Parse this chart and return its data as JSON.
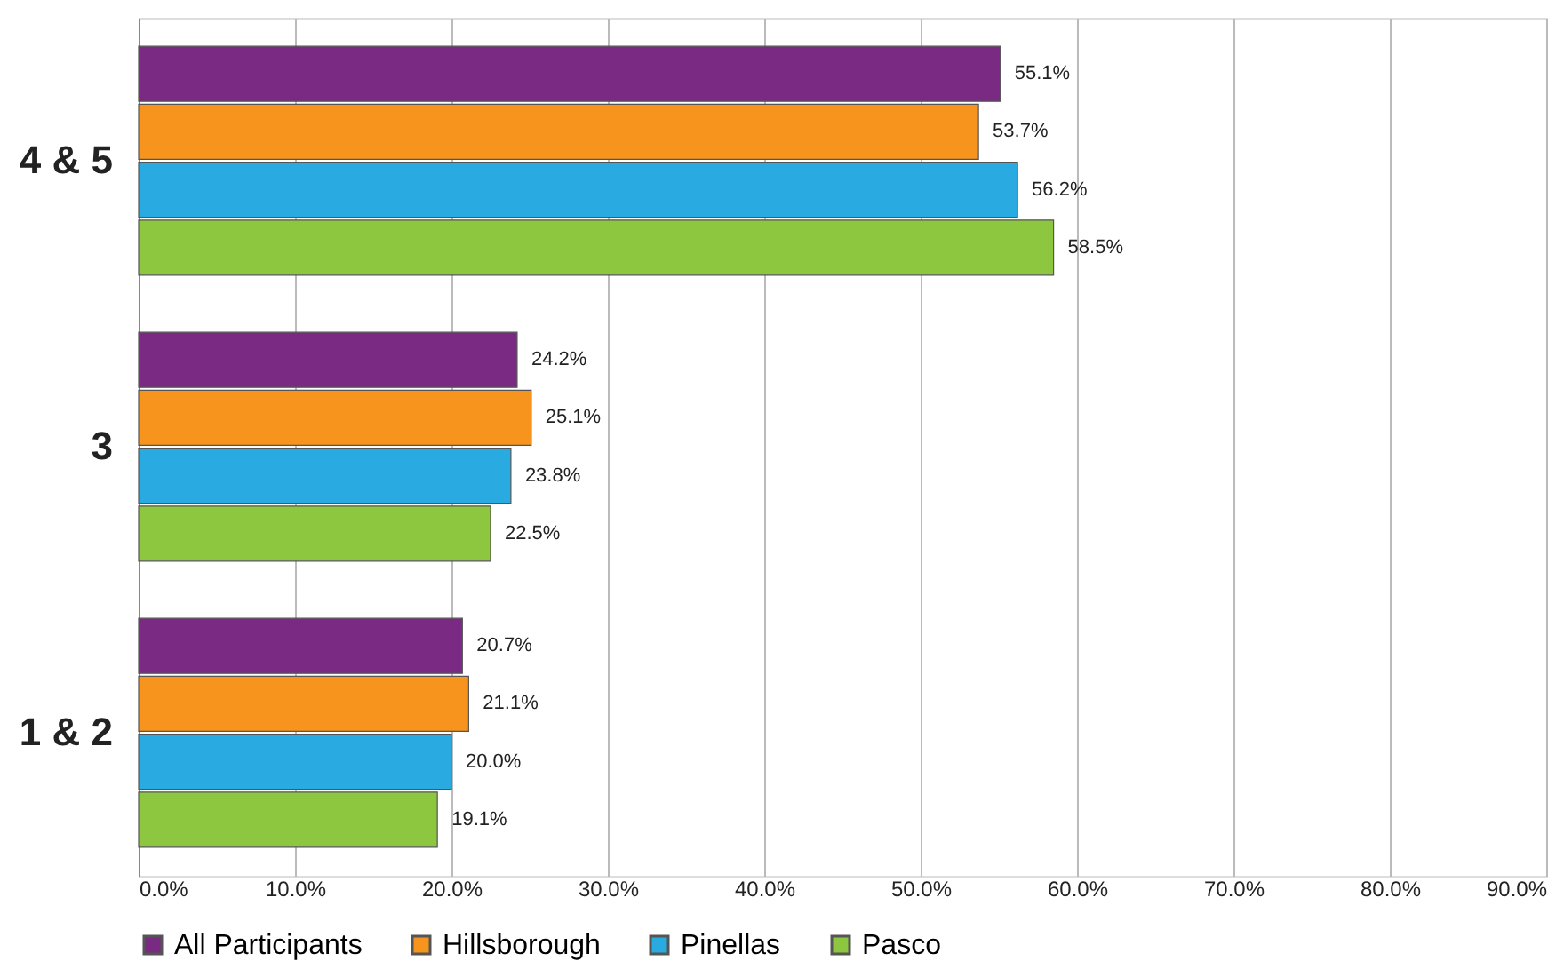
{
  "chart_data": {
    "type": "bar",
    "orientation": "horizontal",
    "categories": [
      "4 & 5",
      "3",
      "1 & 2"
    ],
    "series": [
      {
        "name": "All Participants",
        "color": "#7b2a83",
        "values": [
          55.1,
          24.2,
          20.7
        ],
        "value_labels": [
          "55.1%",
          "24.2%",
          "20.7%"
        ]
      },
      {
        "name": "Hillsborough",
        "color": "#f7941d",
        "values": [
          53.7,
          25.1,
          21.1
        ],
        "value_labels": [
          "53.7%",
          "25.1%",
          "21.1%"
        ]
      },
      {
        "name": "Pinellas",
        "color": "#29abe2",
        "values": [
          56.2,
          23.8,
          20.0
        ],
        "value_labels": [
          "56.2%",
          "23.8%",
          "20.0%"
        ]
      },
      {
        "name": "Pasco",
        "color": "#8dc63f",
        "values": [
          58.5,
          22.5,
          19.1
        ],
        "value_labels": [
          "58.5%",
          "22.5%",
          "19.1%"
        ]
      }
    ],
    "xlim": [
      0,
      90
    ],
    "xticks": [
      {
        "value": 0,
        "label": "0.0%"
      },
      {
        "value": 10,
        "label": "10.0%"
      },
      {
        "value": 20,
        "label": "20.0%"
      },
      {
        "value": 30,
        "label": "30.0%"
      },
      {
        "value": 40,
        "label": "40.0%"
      },
      {
        "value": 50,
        "label": "50.0%"
      },
      {
        "value": 60,
        "label": "60.0%"
      },
      {
        "value": 70,
        "label": "70.0%"
      },
      {
        "value": 80,
        "label": "80.0%"
      },
      {
        "value": 90,
        "label": "90.0%"
      }
    ],
    "grid": "x",
    "legend": "bottom"
  }
}
